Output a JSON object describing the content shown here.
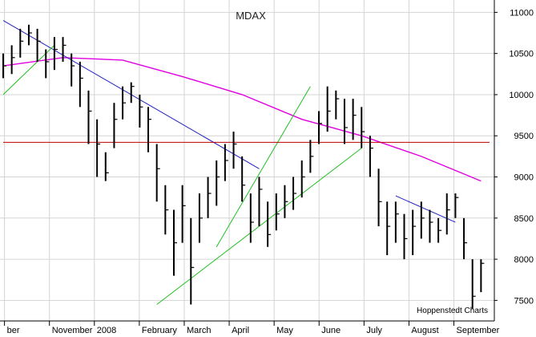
{
  "chart_data": {
    "type": "line",
    "style": "ohlc-bars",
    "title": "MDAX",
    "source_note": "Hoppenstedt Charts",
    "x_months": [
      "ber",
      "November",
      "2008",
      "February",
      "March",
      "April",
      "May",
      "June",
      "July",
      "August",
      "September"
    ],
    "y_ticks": [
      7500,
      8000,
      8500,
      9000,
      9500,
      10000,
      10500,
      11000
    ],
    "ylim": [
      7250,
      11150
    ],
    "xlim": [
      0,
      57
    ],
    "grid": true,
    "y_axis_side": "right",
    "colors": {
      "price": "#000000",
      "moving_average": "#e000e0",
      "downtrend": "#2020c0",
      "uptrend": "#20c020",
      "support": "#c00000",
      "grid": "#d4d4d4",
      "axis": "#000000"
    },
    "series": [
      {
        "kind": "price",
        "x": [
          0,
          1,
          2,
          3,
          4,
          5,
          6,
          7,
          8,
          9,
          10,
          11,
          12,
          13,
          14,
          15,
          16,
          17,
          18,
          19,
          20,
          21,
          22,
          23,
          24,
          25,
          26,
          27,
          28,
          29,
          30,
          31,
          32,
          33,
          34,
          35,
          36,
          37,
          38,
          39,
          40,
          41,
          42,
          43,
          44,
          45,
          46,
          47,
          48,
          49,
          50,
          51,
          52,
          53,
          54,
          55,
          56
        ],
        "y": [
          10350,
          10450,
          10650,
          10750,
          10650,
          10400,
          10550,
          10600,
          10350,
          10200,
          9800,
          9400,
          9050,
          9700,
          9900,
          10100,
          9850,
          9700,
          9100,
          8600,
          8200,
          8650,
          7900,
          8500,
          8800,
          9000,
          9200,
          9400,
          8900,
          8450,
          8850,
          8300,
          8550,
          8700,
          8800,
          9000,
          9250,
          9650,
          9800,
          9950,
          9600,
          9750,
          9550,
          9350,
          8700,
          8400,
          8550,
          8250,
          8400,
          8500,
          8450,
          8350,
          8600,
          8750,
          8200,
          7550,
          7950
        ],
        "high": [
          10500,
          10600,
          10800,
          10850,
          10800,
          10550,
          10700,
          10700,
          10500,
          10400,
          10050,
          9700,
          9300,
          9900,
          10100,
          10150,
          10000,
          9850,
          9400,
          8900,
          8600,
          8900,
          8500,
          8800,
          9000,
          9200,
          9400,
          9550,
          9250,
          8800,
          9000,
          8700,
          8800,
          8900,
          9000,
          9200,
          9450,
          9800,
          10100,
          10050,
          9950,
          9950,
          9850,
          9500,
          9100,
          8700,
          8700,
          8550,
          8600,
          8700,
          8600,
          8500,
          8800,
          8800,
          8500,
          8000,
          8000
        ],
        "low": [
          10200,
          10250,
          10450,
          10600,
          10400,
          10200,
          10300,
          10400,
          10100,
          9850,
          9400,
          9000,
          8950,
          9350,
          9700,
          9900,
          9600,
          9300,
          8700,
          8300,
          7800,
          8200,
          7450,
          8200,
          8500,
          8650,
          8950,
          9100,
          8700,
          8200,
          8400,
          8150,
          8350,
          8500,
          8600,
          8750,
          9050,
          9400,
          9550,
          9700,
          9400,
          9450,
          9350,
          9000,
          8400,
          8050,
          8200,
          8000,
          8050,
          8250,
          8200,
          8200,
          8300,
          8500,
          8000,
          7400,
          7600
        ]
      },
      {
        "kind": "moving_average",
        "x": [
          0,
          7,
          14,
          21,
          28,
          35,
          42,
          49,
          56
        ],
        "y": [
          10350,
          10450,
          10420,
          10220,
          10000,
          9700,
          9500,
          9250,
          8950
        ]
      },
      {
        "kind": "downtrend",
        "x": [
          0,
          30
        ],
        "y": [
          10900,
          9100
        ]
      },
      {
        "kind": "downtrend",
        "x": [
          46,
          53
        ],
        "y": [
          8770,
          8450
        ]
      },
      {
        "kind": "uptrend",
        "x": [
          0,
          6
        ],
        "y": [
          10000,
          10600
        ]
      },
      {
        "kind": "uptrend",
        "x": [
          25,
          36
        ],
        "y": [
          8150,
          10100
        ]
      },
      {
        "kind": "uptrend",
        "x": [
          18,
          42
        ],
        "y": [
          7450,
          9350
        ]
      },
      {
        "kind": "support",
        "x": [
          0,
          57
        ],
        "y": [
          9420,
          9420
        ]
      }
    ]
  }
}
